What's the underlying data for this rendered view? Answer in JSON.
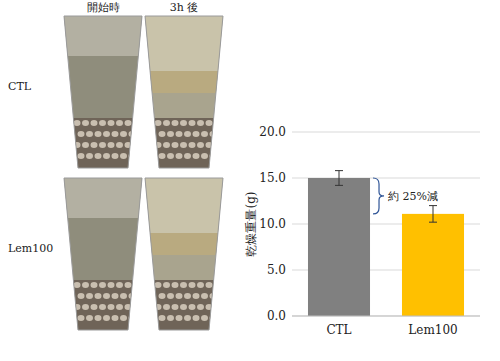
{
  "photo_panel": {
    "columns": [
      "開始時",
      "3h 後"
    ],
    "rows": [
      "CTL",
      "Lem100"
    ]
  },
  "chart_data": {
    "type": "bar",
    "y_label": "乾燥重量(g)",
    "categories": [
      "CTL",
      "Lem100"
    ],
    "values": [
      15.0,
      11.1
    ],
    "errors": [
      0.8,
      0.9
    ],
    "colors": [
      "#808080",
      "#ffc000"
    ],
    "ylim": [
      0,
      20
    ],
    "yticks": [
      {
        "value": 0,
        "label": "0.0"
      },
      {
        "value": 5,
        "label": "5.0"
      },
      {
        "value": 10,
        "label": "10.0"
      },
      {
        "value": 15,
        "label": "15.0"
      },
      {
        "value": 20,
        "label": "20.0"
      }
    ],
    "grid": true,
    "annotation": "約 25%減"
  }
}
